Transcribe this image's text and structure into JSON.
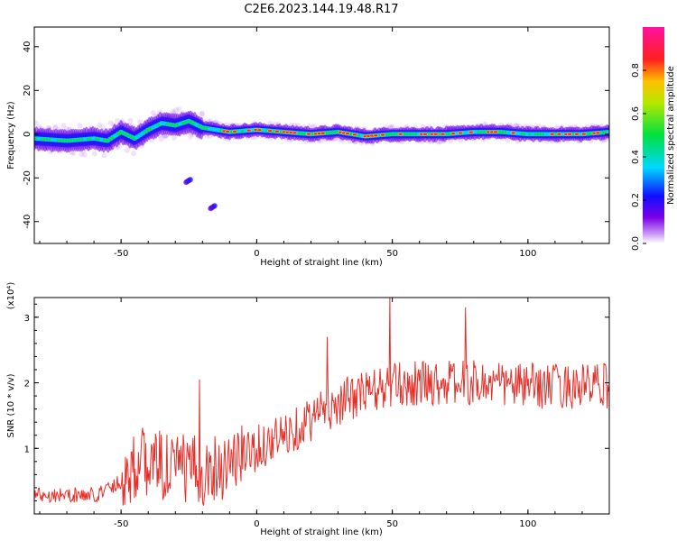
{
  "title": "C2E6.2023.144.19.48.R17",
  "chart_data": [
    {
      "type": "heatmap",
      "xlabel": "Height of straight line (km)",
      "ylabel": "Frequency (Hz)",
      "xlim": [
        -82,
        130
      ],
      "ylim": [
        -50,
        49
      ],
      "xticks": [
        -50,
        0,
        50,
        100
      ],
      "yticks": [
        -40,
        -20,
        0,
        20,
        40
      ],
      "xtick_labels": [
        "-50",
        "0",
        "50",
        "100"
      ],
      "ytick_labels": [
        "-40",
        "-20",
        "0",
        "20",
        "40"
      ],
      "colorbar": {
        "label": "Normalized spectral amplitude",
        "range": [
          0,
          1
        ],
        "ticks": [
          0.0,
          0.2,
          0.4,
          0.6,
          0.8
        ],
        "tick_labels": [
          "0.0",
          "0.2",
          "0.4",
          "0.6",
          "0.8"
        ],
        "colormap": "rainbow (violet → blue → cyan → green → yellow → red → magenta)"
      },
      "ridge": {
        "description": "Dominant frequency trace vs height",
        "points": [
          [
            -82,
            -2
          ],
          [
            -70,
            -3
          ],
          [
            -60,
            -2
          ],
          [
            -55,
            -3
          ],
          [
            -50,
            1
          ],
          [
            -45,
            -2
          ],
          [
            -40,
            2
          ],
          [
            -35,
            5
          ],
          [
            -30,
            4
          ],
          [
            -25,
            6
          ],
          [
            -20,
            3
          ],
          [
            -10,
            1
          ],
          [
            0,
            2
          ],
          [
            10,
            1
          ],
          [
            20,
            0
          ],
          [
            30,
            1
          ],
          [
            40,
            -1
          ],
          [
            50,
            0
          ],
          [
            60,
            0
          ],
          [
            70,
            0
          ],
          [
            80,
            1
          ],
          [
            90,
            1
          ],
          [
            100,
            0
          ],
          [
            110,
            0
          ],
          [
            120,
            0
          ],
          [
            130,
            1
          ]
        ]
      },
      "secondary_blobs": [
        {
          "x": -26,
          "y": -22
        },
        {
          "x": -17,
          "y": -34
        }
      ]
    },
    {
      "type": "line",
      "xlabel": "Height of straight line (km)",
      "ylabel": "SNR (10 * v/v)",
      "y_multiplier": "(x10⁴)",
      "xlim": [
        -82,
        130
      ],
      "ylim": [
        0,
        3.3
      ],
      "xticks": [
        -50,
        0,
        50,
        100
      ],
      "yticks": [
        1,
        2,
        3
      ],
      "xtick_labels": [
        "-50",
        "0",
        "50",
        "100"
      ],
      "ytick_labels": [
        "1",
        "2",
        "3"
      ],
      "series": [
        {
          "name": "SNR",
          "color": "#e8302a",
          "trend": {
            "x": [
              -82,
              -60,
              -50,
              -45,
              -40,
              -30,
              -20,
              -10,
              0,
              10,
              20,
              30,
              40,
              50,
              60,
              80,
              100,
              130
            ],
            "y": [
              0.3,
              0.28,
              0.5,
              0.75,
              0.8,
              0.7,
              0.65,
              0.8,
              1.0,
              1.2,
              1.45,
              1.7,
              1.85,
              1.95,
              2.0,
              2.0,
              1.95,
              1.95
            ]
          },
          "notable_peaks": [
            [
              49,
              3.3
            ],
            [
              77,
              3.15
            ],
            [
              26,
              2.7
            ],
            [
              -21,
              2.05
            ]
          ]
        }
      ]
    }
  ]
}
